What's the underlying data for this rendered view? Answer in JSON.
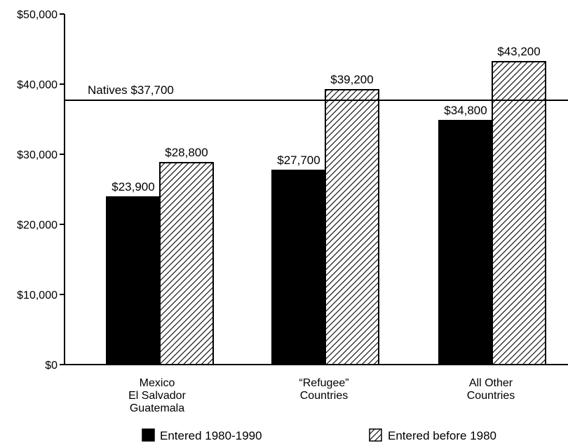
{
  "chart_data": {
    "type": "bar",
    "categories": [
      [
        "Mexico",
        "El Salvador",
        "Guatemala"
      ],
      [
        "“Refugee”",
        "Countries"
      ],
      [
        "All Other",
        "Countries"
      ]
    ],
    "series": [
      {
        "name": "Entered 1980-1990",
        "values": [
          23900,
          27700,
          34800
        ],
        "labels": [
          "$23,900",
          "$27,700",
          "$34,800"
        ],
        "fill": "solid",
        "color": "#000000"
      },
      {
        "name": "Entered before 1980",
        "values": [
          28800,
          39200,
          43200
        ],
        "labels": [
          "$28,800",
          "$39,200",
          "$43,200"
        ],
        "fill": "hatched",
        "color": "#000000"
      }
    ],
    "y_ticks": [
      0,
      10000,
      20000,
      30000,
      40000,
      50000
    ],
    "y_tick_labels": [
      "$0",
      "$10,000",
      "$20,000",
      "$30,000",
      "$40,000",
      "$50,000"
    ],
    "ylim": [
      0,
      50000
    ],
    "reference_line": {
      "label": "Natives $37,700",
      "value": 37700
    },
    "legend": "bottom",
    "grid": false
  }
}
